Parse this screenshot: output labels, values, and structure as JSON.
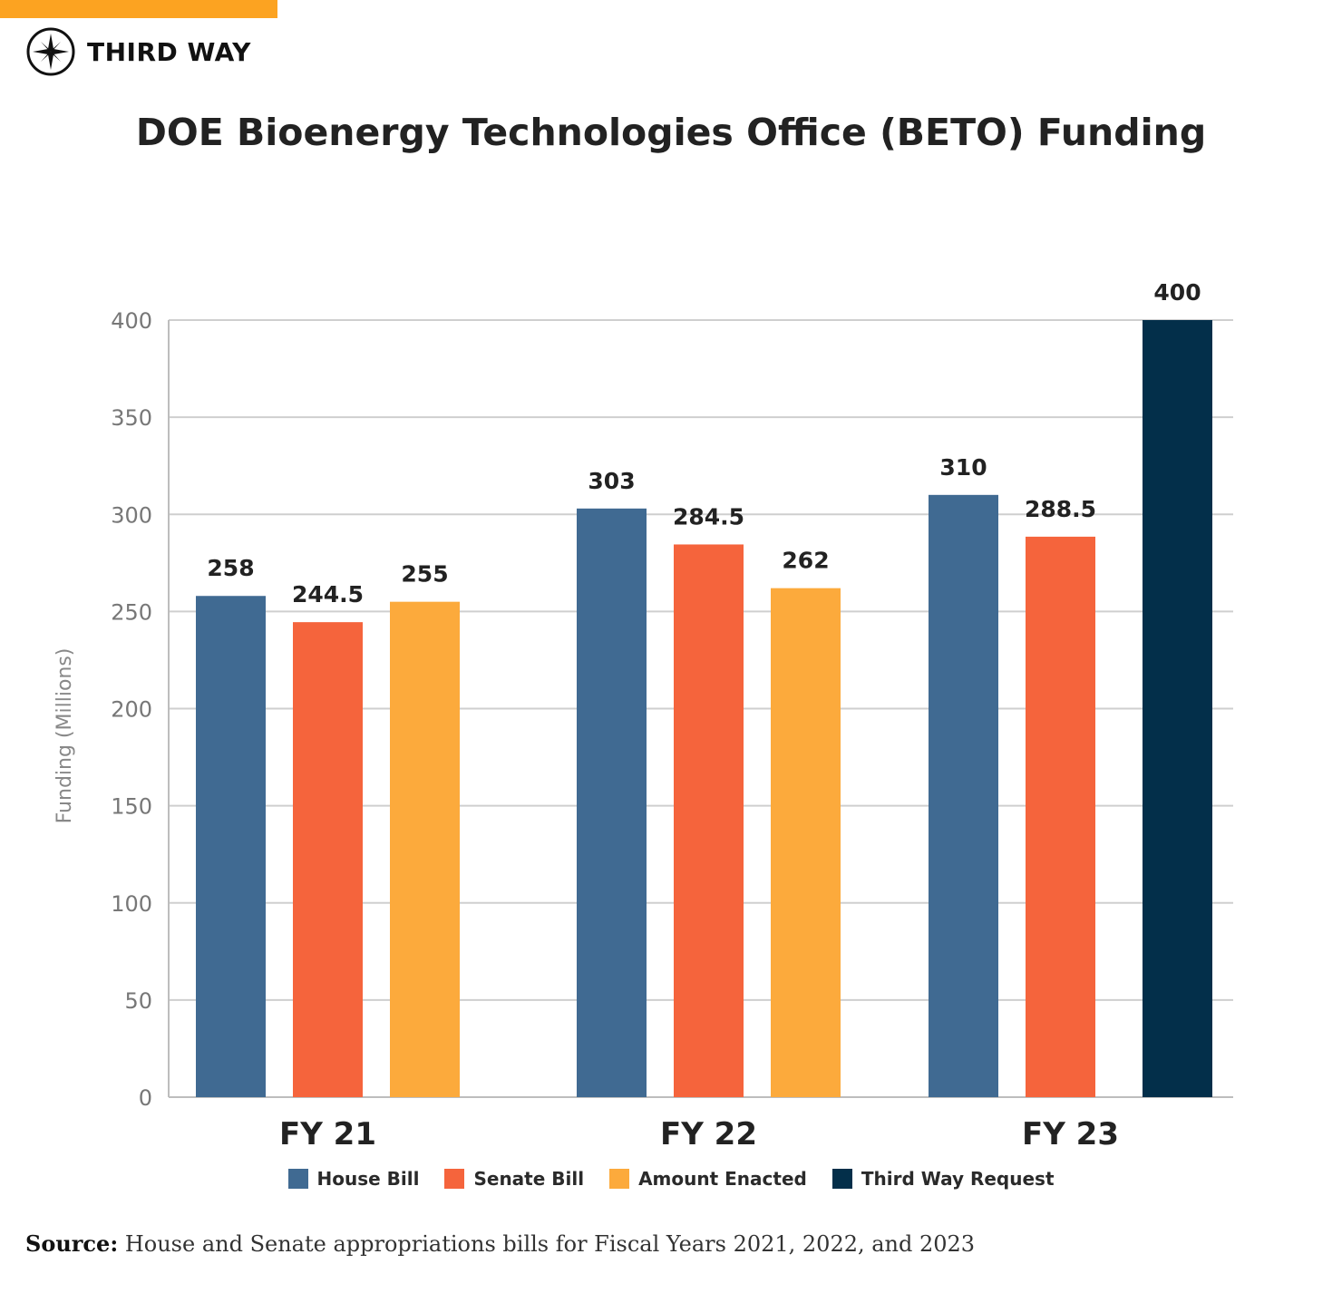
{
  "brand": {
    "name": "THIRD WAY",
    "accent": "#fca321"
  },
  "title": "DOE Bioenergy Technologies Office (BETO) Funding",
  "source": {
    "label": "Source:",
    "text": "House and Senate appropriations bills for Fiscal Years 2021, 2022, and 2023"
  },
  "chart_data": {
    "type": "bar",
    "title": "DOE Bioenergy Technologies Office (BETO) Funding",
    "ylabel": "Funding (Millions)",
    "xlabel": "",
    "ylim": [
      0,
      400
    ],
    "yticks": [
      0,
      50,
      100,
      150,
      200,
      250,
      300,
      350,
      400
    ],
    "grid": true,
    "legend_position": "bottom",
    "categories": [
      "FY 21",
      "FY 22",
      "FY 23"
    ],
    "series": [
      {
        "name": "House Bill",
        "color": "#406a92",
        "values": [
          258,
          303,
          310
        ],
        "labels": [
          "258",
          "303",
          "310"
        ]
      },
      {
        "name": "Senate Bill",
        "color": "#f5643c",
        "values": [
          244.5,
          284.5,
          288.5
        ],
        "labels": [
          "244.5",
          "284.5",
          "288.5"
        ]
      },
      {
        "name": "Amount Enacted",
        "color": "#fcaa3c",
        "values": [
          255,
          262,
          null
        ],
        "labels": [
          "255",
          "262",
          ""
        ]
      },
      {
        "name": "Third Way Request",
        "color": "#032f4a",
        "values": [
          null,
          null,
          400
        ],
        "labels": [
          "",
          "",
          "400"
        ]
      }
    ]
  }
}
